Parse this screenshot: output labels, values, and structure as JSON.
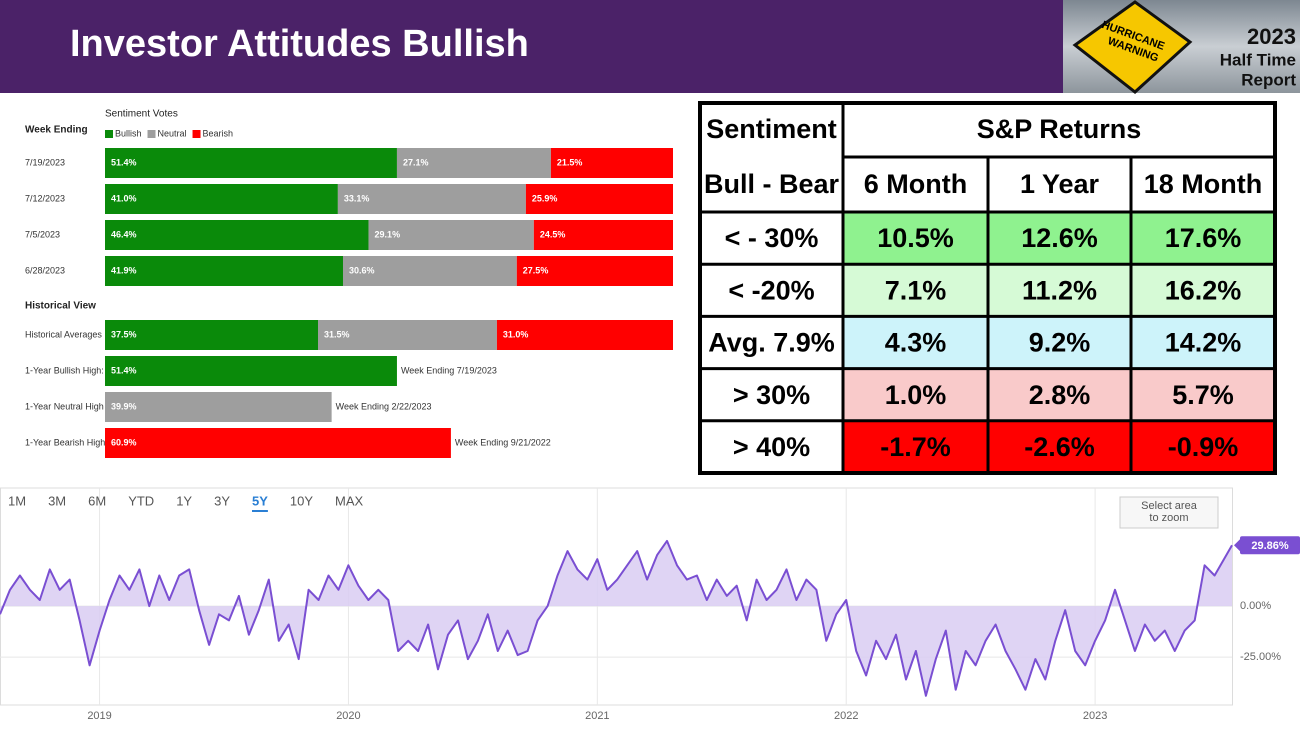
{
  "header": {
    "title": "Investor Attitudes Bullish",
    "badge": {
      "sign_lines": [
        "HURRICANE",
        "WARNING"
      ],
      "lines": [
        "2023",
        "Half Time",
        "Report"
      ]
    }
  },
  "chart_data": [
    {
      "type": "bar",
      "orientation": "horizontal",
      "stacked": true,
      "title": "Sentiment Votes",
      "y_axis_label": "Week Ending",
      "section_label": "Historical View",
      "section_start": 4,
      "categories": [
        "7/19/2023",
        "7/12/2023",
        "7/5/2023",
        "6/28/2023",
        "Historical Averages",
        "1-Year Bullish High:",
        "1-Year Neutral High",
        "1-Year Bearish High"
      ],
      "xlim": [
        0,
        100
      ],
      "series": [
        {
          "name": "Bullish",
          "color": "#0a8a0a",
          "values": [
            51.4,
            41.0,
            46.4,
            41.9,
            37.5,
            51.4,
            null,
            null
          ],
          "value_labels": [
            "51.4%",
            "41.0%",
            "46.4%",
            "41.9%",
            "37.5%",
            "51.4%",
            null,
            null
          ]
        },
        {
          "name": "Neutral",
          "color": "#9e9e9e",
          "values": [
            27.1,
            33.1,
            29.1,
            30.6,
            31.5,
            null,
            39.9,
            null
          ],
          "value_labels": [
            "27.1%",
            "33.1%",
            "29.1%",
            "30.6%",
            "31.5%",
            null,
            "39.9%",
            null
          ]
        },
        {
          "name": "Bearish",
          "color": "#ff0000",
          "values": [
            21.5,
            25.9,
            24.5,
            27.5,
            31.0,
            null,
            null,
            60.9
          ],
          "value_labels": [
            "21.5%",
            "25.9%",
            "24.5%",
            "27.5%",
            "31.0%",
            null,
            null,
            "60.9%"
          ]
        }
      ],
      "notes": [
        null,
        null,
        null,
        null,
        null,
        "Week Ending 7/19/2023",
        "Week Ending 2/22/2023",
        "Week Ending 9/21/2022"
      ]
    },
    {
      "type": "line",
      "color": "#7a4fd2",
      "area_color": "#d9cdf2",
      "range_buttons": [
        "1M",
        "3M",
        "6M",
        "YTD",
        "1Y",
        "3Y",
        "5Y",
        "10Y",
        "MAX"
      ],
      "selected_range_index": 6,
      "zoom_hint": [
        "Select area",
        "to zoom"
      ],
      "xlim": [
        2018.6,
        2023.55
      ],
      "xticks": [
        2019,
        2020,
        2021,
        2022,
        2023
      ],
      "ylim": [
        -48,
        54
      ],
      "yticks": [
        {
          "value": 0,
          "label": "0.00%"
        },
        {
          "value": -25,
          "label": "-25.00%"
        }
      ],
      "grid": true,
      "x": [
        2018.6,
        2018.64,
        2018.68,
        2018.72,
        2018.76,
        2018.8,
        2018.84,
        2018.88,
        2018.92,
        2018.96,
        2019.0,
        2019.04,
        2019.08,
        2019.12,
        2019.16,
        2019.2,
        2019.24,
        2019.28,
        2019.32,
        2019.36,
        2019.4,
        2019.44,
        2019.48,
        2019.52,
        2019.56,
        2019.6,
        2019.64,
        2019.68,
        2019.72,
        2019.76,
        2019.8,
        2019.84,
        2019.88,
        2019.92,
        2019.96,
        2020.0,
        2020.04,
        2020.08,
        2020.12,
        2020.16,
        2020.2,
        2020.24,
        2020.28,
        2020.32,
        2020.36,
        2020.4,
        2020.44,
        2020.48,
        2020.52,
        2020.56,
        2020.6,
        2020.64,
        2020.68,
        2020.72,
        2020.76,
        2020.8,
        2020.84,
        2020.88,
        2020.92,
        2020.96,
        2021.0,
        2021.04,
        2021.08,
        2021.12,
        2021.16,
        2021.2,
        2021.24,
        2021.28,
        2021.32,
        2021.36,
        2021.4,
        2021.44,
        2021.48,
        2021.52,
        2021.56,
        2021.6,
        2021.64,
        2021.68,
        2021.72,
        2021.76,
        2021.8,
        2021.84,
        2021.88,
        2021.92,
        2021.96,
        2022.0,
        2022.04,
        2022.08,
        2022.12,
        2022.16,
        2022.2,
        2022.24,
        2022.28,
        2022.32,
        2022.36,
        2022.4,
        2022.44,
        2022.48,
        2022.52,
        2022.56,
        2022.6,
        2022.64,
        2022.68,
        2022.72,
        2022.76,
        2022.8,
        2022.84,
        2022.88,
        2022.92,
        2022.96,
        2023.0,
        2023.04,
        2023.08,
        2023.12,
        2023.16,
        2023.2,
        2023.24,
        2023.28,
        2023.32,
        2023.36,
        2023.4,
        2023.44,
        2023.48,
        2023.55
      ],
      "values": [
        -4,
        8,
        15,
        8,
        3,
        18,
        8,
        13,
        -7,
        -29,
        -12,
        3,
        15,
        8,
        18,
        0,
        15,
        3,
        15,
        18,
        -2,
        -19,
        -4,
        -7,
        5,
        -14,
        -2,
        13,
        -17,
        -9,
        -26,
        8,
        3,
        15,
        8,
        20,
        10,
        3,
        8,
        3,
        -22,
        -17,
        -22,
        -9,
        -31,
        -14,
        -7,
        -26,
        -17,
        -4,
        -22,
        -12,
        -24,
        -22,
        -7,
        0,
        15,
        27,
        18,
        13,
        23,
        8,
        13,
        20,
        27,
        13,
        25,
        32,
        20,
        13,
        15,
        3,
        13,
        5,
        10,
        -7,
        13,
        3,
        8,
        18,
        3,
        13,
        8,
        -17,
        -4,
        3,
        -22,
        -34,
        -17,
        -26,
        -14,
        -36,
        -22,
        -44,
        -26,
        -12,
        -41,
        -22,
        -29,
        -17,
        -9,
        -22,
        -31,
        -41,
        -26,
        -36,
        -17,
        -2,
        -22,
        -29,
        -17,
        -7,
        8,
        -7,
        -22,
        -9,
        -17,
        -12,
        -22,
        -12,
        -7,
        20,
        15,
        29.86
      ],
      "value_labels": [
        null,
        null,
        null,
        null,
        null,
        null,
        null,
        null,
        null,
        null,
        null,
        null,
        null,
        null,
        null,
        null,
        null,
        null,
        null,
        null,
        null,
        null,
        null,
        null,
        null,
        null,
        null,
        null,
        null,
        null,
        null,
        null,
        null,
        null,
        null,
        null,
        null,
        null,
        null,
        null,
        null,
        null,
        null,
        null,
        null,
        null,
        null,
        null,
        null,
        null,
        null,
        null,
        null,
        null,
        null,
        null,
        null,
        null,
        null,
        null,
        null,
        null,
        null,
        null,
        null,
        null,
        null,
        null,
        null,
        null,
        null,
        null,
        null,
        null,
        null,
        null,
        null,
        null,
        null,
        null,
        null,
        null,
        null,
        null,
        null,
        null,
        null,
        null,
        null,
        null,
        null,
        null,
        null,
        null,
        null,
        null,
        null,
        null,
        null,
        null,
        null,
        null,
        null,
        null,
        null,
        null,
        null,
        null,
        null,
        null,
        null,
        null,
        null,
        null,
        null,
        null,
        null,
        null,
        null,
        null,
        null,
        null,
        null,
        "29.86%"
      ]
    }
  ],
  "table": {
    "corner": [
      "Sentiment",
      "Bull - Bear"
    ],
    "group": "S&P Returns",
    "columns": [
      "6 Month",
      "1 Year",
      "18 Month"
    ],
    "rows": [
      {
        "label": "< - 30%",
        "cells": [
          "10.5%",
          "12.6%",
          "17.6%"
        ],
        "fill": "#8ff28f",
        "text_color": "#000000",
        "bold": true
      },
      {
        "label": "< -20%",
        "cells": [
          "7.1%",
          "11.2%",
          "16.2%"
        ],
        "fill": "#d6fad6",
        "text_color": "#000000",
        "bold": false
      },
      {
        "label": "Avg. 7.9%",
        "cells": [
          "4.3%",
          "9.2%",
          "14.2%"
        ],
        "fill": "#cdf3fa",
        "text_color": "#000000",
        "bold": false
      },
      {
        "label": "> 30%",
        "cells": [
          "1.0%",
          "2.8%",
          "5.7%"
        ],
        "fill": "#f9caca",
        "text_color": "#c00000",
        "bold": true
      },
      {
        "label": "> 40%",
        "cells": [
          "-1.7%",
          "-2.6%",
          "-0.9%"
        ],
        "fill": "#ff0000",
        "text_color": "#ffff00",
        "bold": true
      }
    ]
  }
}
